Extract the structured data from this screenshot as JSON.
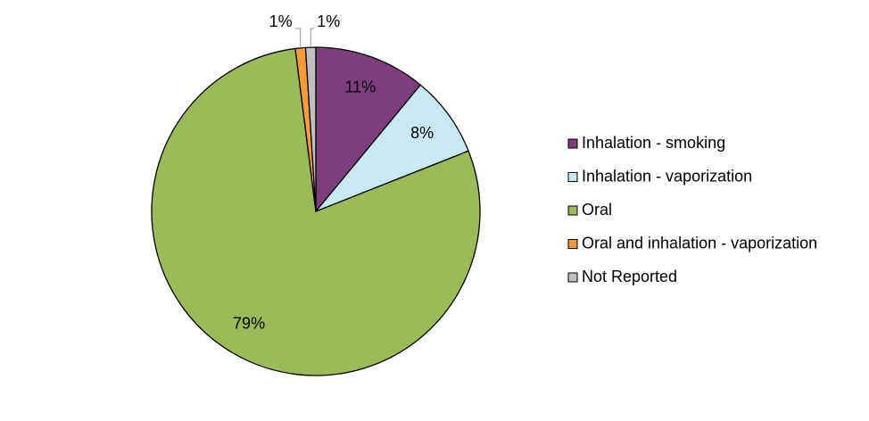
{
  "chart_data": {
    "type": "pie",
    "categories": [
      "Inhalation - smoking",
      "Inhalation - vaporization",
      "Oral",
      "Oral and inhalation - vaporization",
      "Not Reported"
    ],
    "values": [
      11,
      8,
      79,
      1,
      1
    ],
    "value_labels": [
      "11%",
      "8%",
      "79%",
      "1%",
      "1%"
    ],
    "colors": [
      "#7d3f7c",
      "#c9e8f2",
      "#9bbb59",
      "#f79a3a",
      "#bfbfbf"
    ],
    "legend": "right"
  }
}
